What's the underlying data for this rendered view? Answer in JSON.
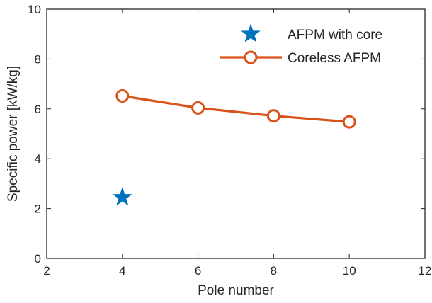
{
  "chart_data": {
    "type": "line",
    "xlabel": "Pole number",
    "ylabel": "Specific power [kW/kg]",
    "xlim": [
      2,
      12
    ],
    "ylim": [
      0,
      10
    ],
    "xticks": [
      2,
      4,
      6,
      8,
      10,
      12
    ],
    "yticks": [
      0,
      2,
      4,
      6,
      8,
      10
    ],
    "grid": false,
    "legend_position": "top-right",
    "series": [
      {
        "name": "AFPM with core",
        "kind": "scatter",
        "marker": "star",
        "color": "#0072BD",
        "x": [
          4
        ],
        "y": [
          2.45
        ]
      },
      {
        "name": "Coreless AFPM",
        "kind": "line",
        "marker": "circle",
        "color": "#D95319",
        "x": [
          4,
          6,
          8,
          10
        ],
        "y": [
          6.52,
          6.04,
          5.72,
          5.48
        ]
      }
    ]
  }
}
